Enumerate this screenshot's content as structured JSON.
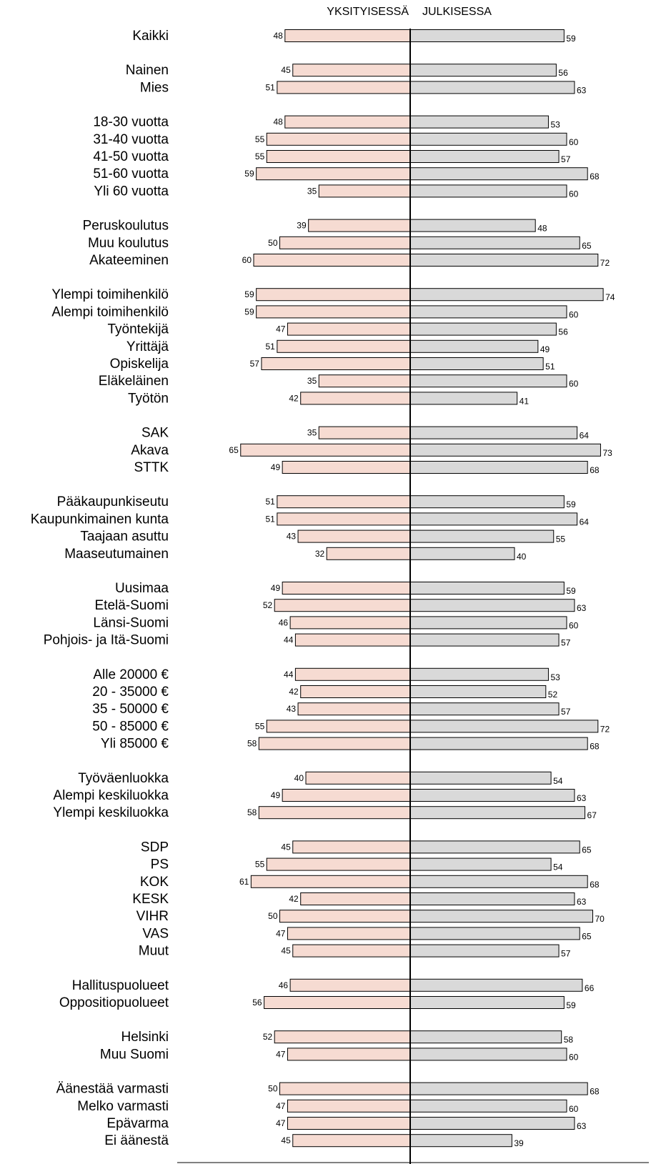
{
  "chart_data": {
    "type": "bar",
    "orientation": "horizontal",
    "layout": "diverging",
    "series": [
      {
        "name": "YKSITYISESSÄ",
        "color": "#f6dbd2",
        "direction": "left"
      },
      {
        "name": "JULKISESSA",
        "color": "#d9d9d9",
        "direction": "right"
      }
    ],
    "groups": [
      {
        "rows": [
          {
            "label": "Kaikki",
            "left": 48,
            "right": 59
          }
        ]
      },
      {
        "rows": [
          {
            "label": "Nainen",
            "left": 45,
            "right": 56
          },
          {
            "label": "Mies",
            "left": 51,
            "right": 63
          }
        ]
      },
      {
        "rows": [
          {
            "label": "18-30 vuotta",
            "left": 48,
            "right": 53
          },
          {
            "label": "31-40 vuotta",
            "left": 55,
            "right": 60
          },
          {
            "label": "41-50 vuotta",
            "left": 55,
            "right": 57
          },
          {
            "label": "51-60 vuotta",
            "left": 59,
            "right": 68
          },
          {
            "label": "Yli 60 vuotta",
            "left": 35,
            "right": 60
          }
        ]
      },
      {
        "rows": [
          {
            "label": "Peruskoulutus",
            "left": 39,
            "right": 48
          },
          {
            "label": "Muu koulutus",
            "left": 50,
            "right": 65
          },
          {
            "label": "Akateeminen",
            "left": 60,
            "right": 72
          }
        ]
      },
      {
        "rows": [
          {
            "label": "Ylempi toimihenkilö",
            "left": 59,
            "right": 74
          },
          {
            "label": "Alempi toimihenkilö",
            "left": 59,
            "right": 60
          },
          {
            "label": "Työntekijä",
            "left": 47,
            "right": 56
          },
          {
            "label": "Yrittäjä",
            "left": 51,
            "right": 49
          },
          {
            "label": "Opiskelija",
            "left": 57,
            "right": 51
          },
          {
            "label": "Eläkeläinen",
            "left": 35,
            "right": 60
          },
          {
            "label": "Työtön",
            "left": 42,
            "right": 41
          }
        ]
      },
      {
        "rows": [
          {
            "label": "SAK",
            "left": 35,
            "right": 64
          },
          {
            "label": "Akava",
            "left": 65,
            "right": 73
          },
          {
            "label": "STTK",
            "left": 49,
            "right": 68
          }
        ]
      },
      {
        "rows": [
          {
            "label": "Pääkaupunkiseutu",
            "left": 51,
            "right": 59
          },
          {
            "label": "Kaupunkimainen kunta",
            "left": 51,
            "right": 64
          },
          {
            "label": "Taajaan asuttu",
            "left": 43,
            "right": 55
          },
          {
            "label": "Maaseutumainen",
            "left": 32,
            "right": 40
          }
        ]
      },
      {
        "rows": [
          {
            "label": "Uusimaa",
            "left": 49,
            "right": 59
          },
          {
            "label": "Etelä-Suomi",
            "left": 52,
            "right": 63
          },
          {
            "label": "Länsi-Suomi",
            "left": 46,
            "right": 60
          },
          {
            "label": "Pohjois- ja Itä-Suomi",
            "left": 44,
            "right": 57
          }
        ]
      },
      {
        "rows": [
          {
            "label": "Alle 20000 €",
            "left": 44,
            "right": 53
          },
          {
            "label": "20 - 35000 €",
            "left": 42,
            "right": 52
          },
          {
            "label": "35 - 50000 €",
            "left": 43,
            "right": 57
          },
          {
            "label": "50 - 85000 €",
            "left": 55,
            "right": 72
          },
          {
            "label": "Yli 85000 €",
            "left": 58,
            "right": 68
          }
        ]
      },
      {
        "rows": [
          {
            "label": "Työväenluokka",
            "left": 40,
            "right": 54
          },
          {
            "label": "Alempi keskiluokka",
            "left": 49,
            "right": 63
          },
          {
            "label": "Ylempi keskiluokka",
            "left": 58,
            "right": 67
          }
        ]
      },
      {
        "rows": [
          {
            "label": "SDP",
            "left": 45,
            "right": 65
          },
          {
            "label": "PS",
            "left": 55,
            "right": 54
          },
          {
            "label": "KOK",
            "left": 61,
            "right": 68
          },
          {
            "label": "KESK",
            "left": 42,
            "right": 63
          },
          {
            "label": "VIHR",
            "left": 50,
            "right": 70
          },
          {
            "label": "VAS",
            "left": 47,
            "right": 65
          },
          {
            "label": "Muut",
            "left": 45,
            "right": 57
          }
        ]
      },
      {
        "rows": [
          {
            "label": "Hallituspuolueet",
            "left": 46,
            "right": 66
          },
          {
            "label": "Oppositiopuolueet",
            "left": 56,
            "right": 59
          }
        ]
      },
      {
        "rows": [
          {
            "label": "Helsinki",
            "left": 52,
            "right": 58
          },
          {
            "label": "Muu Suomi",
            "left": 47,
            "right": 60
          }
        ]
      },
      {
        "rows": [
          {
            "label": "Äänestää varmasti",
            "left": 50,
            "right": 68
          },
          {
            "label": "Melko varmasti",
            "left": 47,
            "right": 60
          },
          {
            "label": "Epävarma",
            "left": 47,
            "right": 63
          },
          {
            "label": "Ei äänestä",
            "left": 45,
            "right": 39
          }
        ]
      }
    ]
  }
}
